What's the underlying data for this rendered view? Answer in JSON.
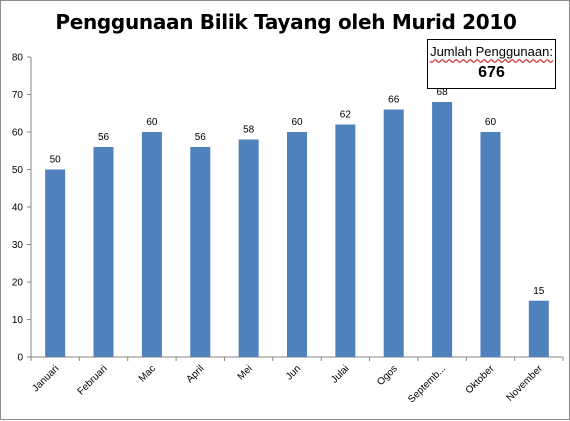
{
  "chart_data": {
    "type": "bar",
    "title": "Penggunaan Bilik Tayang oleh Murid 2010",
    "categories": [
      "Januari",
      "Februari",
      "Mac",
      "April",
      "Mei",
      "Jun",
      "Julai",
      "Ogos",
      "Septemb...",
      "Oktober",
      "November"
    ],
    "values": [
      50,
      56,
      60,
      56,
      58,
      60,
      62,
      66,
      68,
      60,
      15
    ],
    "ylim": [
      0,
      80
    ],
    "yticks": [
      0,
      10,
      20,
      30,
      40,
      50,
      60,
      70,
      80
    ],
    "grid": false,
    "data_labels": true,
    "bar_color": "#4f81bd"
  },
  "summary": {
    "label": "Jumlah Penggunaan:",
    "value": "676"
  }
}
